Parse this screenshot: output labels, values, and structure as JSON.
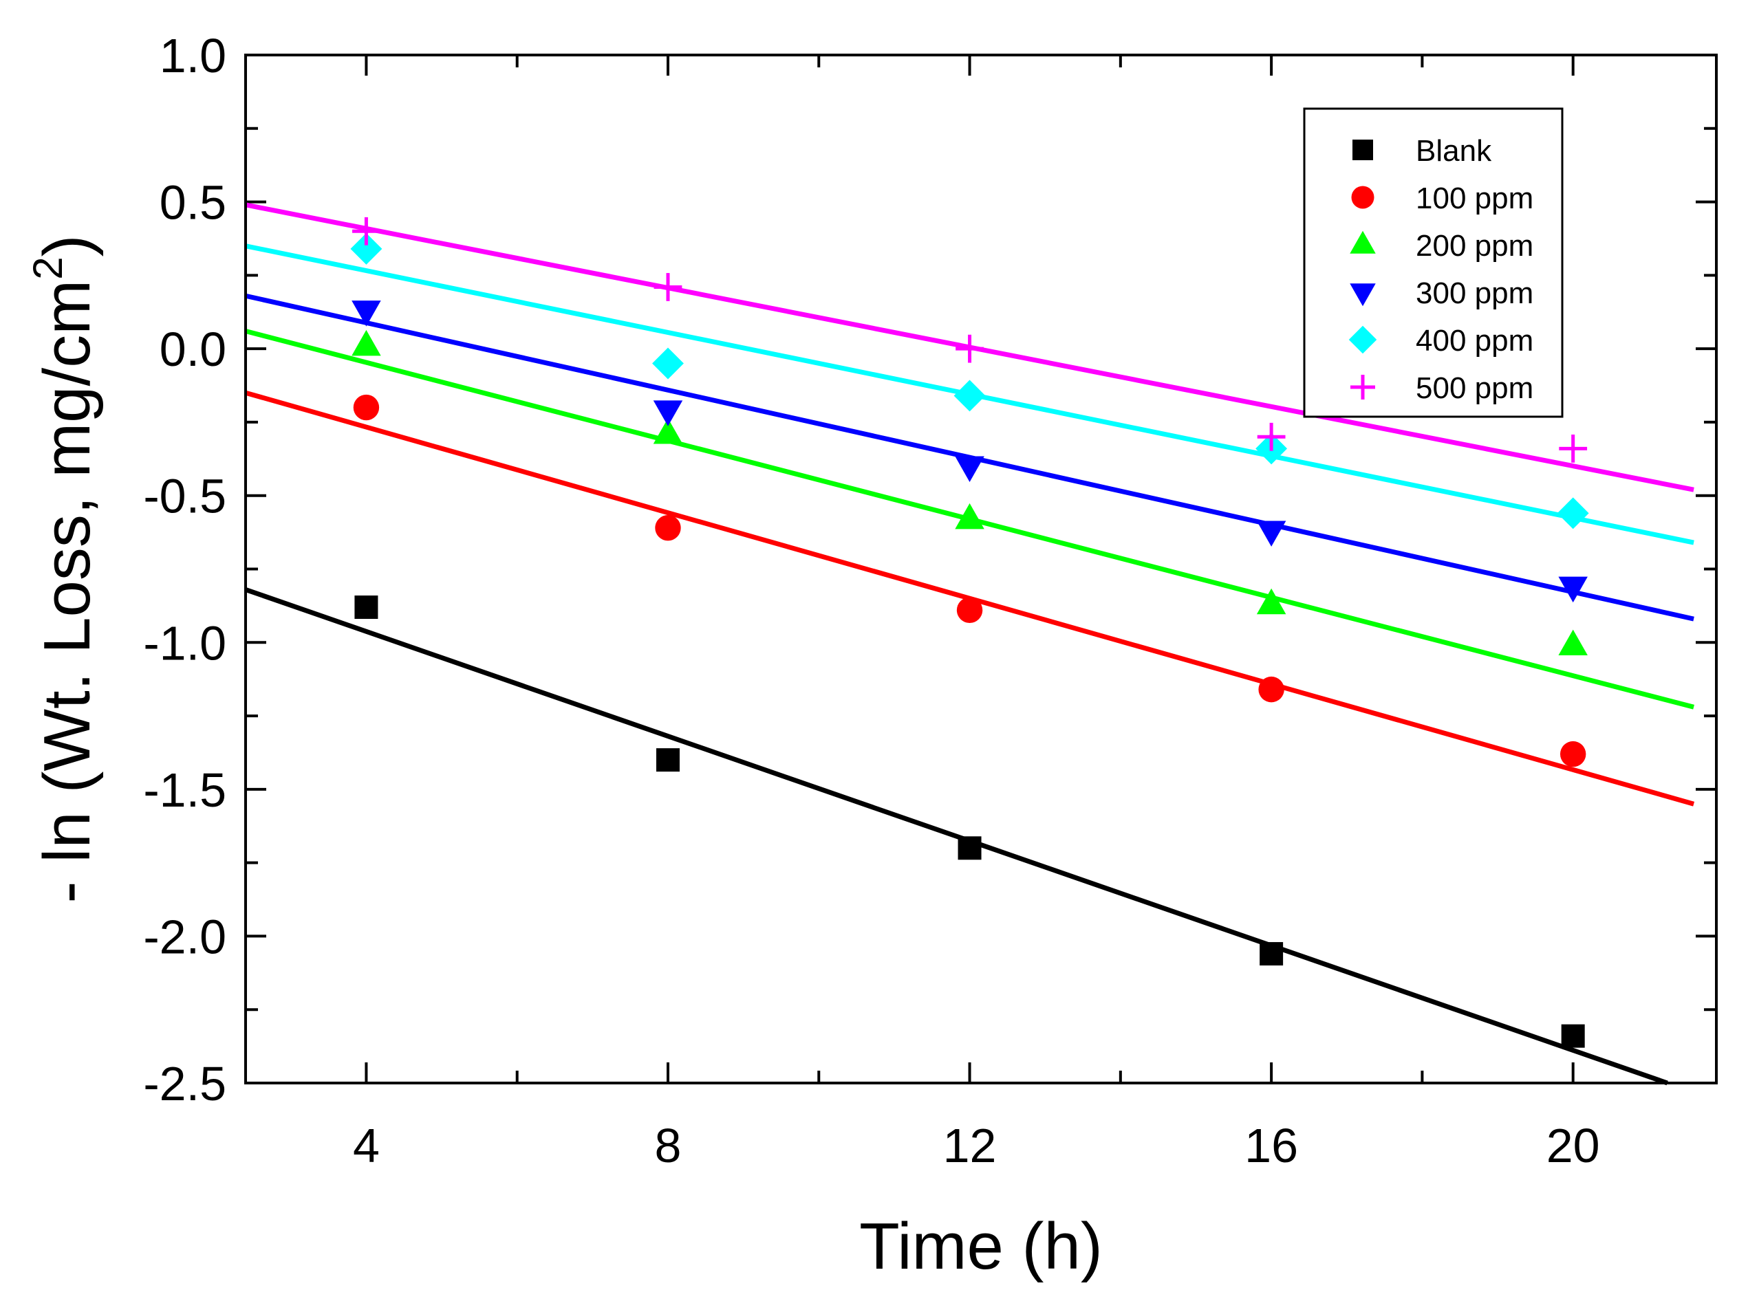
{
  "chart_data": {
    "type": "scatter",
    "xlabel": "Time (h)",
    "ylabel_main": "- ln (Wt. Loss, mg/cm",
    "ylabel_sup": "2",
    "ylabel_close": ")",
    "xlim": [
      2.4,
      21.9
    ],
    "ylim": [
      -2.5,
      1.0
    ],
    "xticks": [
      4,
      8,
      12,
      16,
      20
    ],
    "xticklabels": [
      "4",
      "8",
      "12",
      "16",
      "20"
    ],
    "yticks": [
      1.0,
      0.5,
      0.0,
      -0.5,
      -1.0,
      -1.5,
      -2.0,
      -2.5
    ],
    "yticklabels": [
      "1.0",
      "0.5",
      "0.0",
      "-0.5",
      "-1.0",
      "-1.5",
      "-2.0",
      "-2.5"
    ],
    "legend_position": "top-right",
    "series": [
      {
        "name": "Blank",
        "marker": "square",
        "color": "#000000",
        "x": [
          4,
          8,
          12,
          16,
          20
        ],
        "y": [
          -0.88,
          -1.4,
          -1.7,
          -2.06,
          -2.34
        ],
        "fit": {
          "x": [
            2.4,
            21.25
          ],
          "y": [
            -0.82,
            -2.5
          ]
        }
      },
      {
        "name": "100 ppm",
        "marker": "circle",
        "color": "#ff0000",
        "x": [
          4,
          8,
          12,
          16,
          20
        ],
        "y": [
          -0.2,
          -0.61,
          -0.89,
          -1.16,
          -1.38
        ],
        "fit": {
          "x": [
            2.4,
            21.6
          ],
          "y": [
            -0.15,
            -1.55
          ]
        }
      },
      {
        "name": "200 ppm",
        "marker": "triangle-up",
        "color": "#00ff00",
        "x": [
          4,
          8,
          12,
          16,
          20
        ],
        "y": [
          0.01,
          -0.29,
          -0.58,
          -0.87,
          -1.01
        ],
        "fit": {
          "x": [
            2.4,
            21.6
          ],
          "y": [
            0.06,
            -1.22
          ]
        }
      },
      {
        "name": "300 ppm",
        "marker": "triangle-down",
        "color": "#0000ff",
        "x": [
          4,
          8,
          12,
          16,
          20
        ],
        "y": [
          0.13,
          -0.21,
          -0.4,
          -0.62,
          -0.81
        ],
        "fit": {
          "x": [
            2.4,
            21.6
          ],
          "y": [
            0.18,
            -0.92
          ]
        }
      },
      {
        "name": "400 ppm",
        "marker": "diamond",
        "color": "#00ffff",
        "x": [
          4,
          8,
          12,
          16,
          20
        ],
        "y": [
          0.34,
          -0.05,
          -0.16,
          -0.34,
          -0.56
        ],
        "fit": {
          "x": [
            2.4,
            21.6
          ],
          "y": [
            0.35,
            -0.66
          ]
        }
      },
      {
        "name": "500 ppm",
        "marker": "plus",
        "color": "#ff00ff",
        "x": [
          4,
          8,
          12,
          16,
          20
        ],
        "y": [
          0.4,
          0.21,
          0.0,
          -0.3,
          -0.34
        ],
        "fit": {
          "x": [
            2.4,
            21.6
          ],
          "y": [
            0.49,
            -0.48
          ]
        }
      }
    ]
  }
}
